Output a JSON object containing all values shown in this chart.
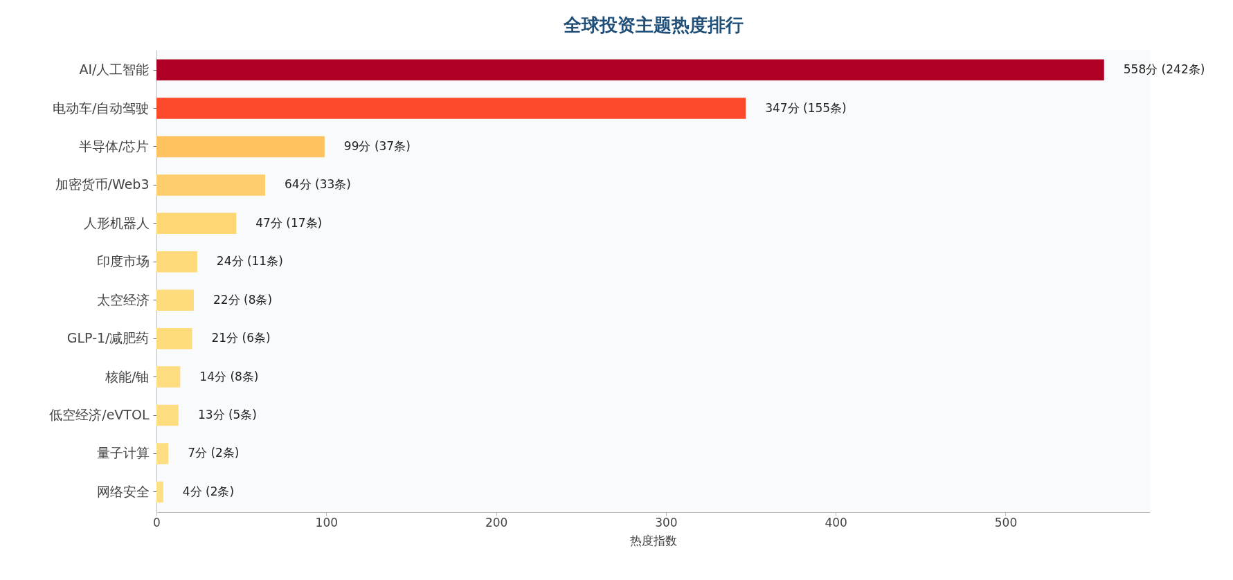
{
  "chart_data": {
    "type": "bar",
    "orientation": "horizontal",
    "title": "全球投资主题热度排行",
    "xlabel": "热度指数",
    "categories": [
      "AI/人工智能",
      "电动车/自动驾驶",
      "半导体/芯片",
      "加密货币/Web3",
      "人形机器人",
      "印度市场",
      "太空经济",
      "GLP-1/减肥药",
      "核能/铀",
      "低空经济/eVTOL",
      "量子计算",
      "网络安全"
    ],
    "values": [
      558,
      347,
      99,
      64,
      47,
      24,
      22,
      21,
      14,
      13,
      7,
      4
    ],
    "colors": [
      "#b10026",
      "#fc4a2a",
      "#fec35f",
      "#fecd6c",
      "#fed674",
      "#feda7b",
      "#fedb7c",
      "#fedb7d",
      "#fedd80",
      "#fedd81",
      "#fede82",
      "#fedf83"
    ],
    "value_labels": [
      "558分 (242条)",
      "347分 (155条)",
      "99分 (37条)",
      "64分 (33条)",
      "47分 (17条)",
      "24分 (11条)",
      "22分 (8条)",
      "21分 (6条)",
      "14分 (8条)",
      "13分 (5条)",
      "7分 (2条)",
      "4分 (2条)"
    ],
    "xlim": [
      0,
      585
    ],
    "xticks": [
      0,
      100,
      200,
      300,
      400,
      500
    ],
    "grid": false,
    "legend": false
  }
}
